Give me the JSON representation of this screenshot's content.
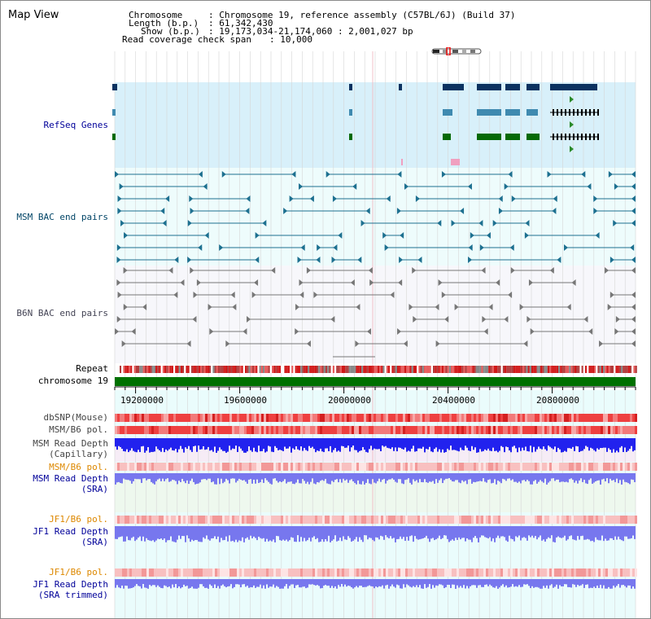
{
  "view_title": "Map View",
  "info": {
    "chromosome_label": "Chromosome",
    "chromosome_value": ": Chromosome 19, reference assembly (C57BL/6J) (Build 37)",
    "length_label": "Length (b.p.)",
    "length_value": ": 61,342,430",
    "show_label": "Show (b.p.)",
    "show_value": ": 19,173,034-21,174,060 : 2,001,027 bp",
    "coverage_label": "Read coverage check span",
    "coverage_value": ": 10,000"
  },
  "tracks": {
    "refseq": "RefSeq Genes",
    "msm_bac": "MSM BAC end pairs",
    "b6n_bac": "B6N BAC end pairs",
    "repeat": "Repeat",
    "chromosome": "chromosome 19",
    "dbsnp": "dbSNP(Mouse)",
    "msm_b6_pol": "MSM/B6 pol.",
    "msm_depth_cap_1": "MSM Read Depth",
    "msm_depth_cap_2": "(Capillary)",
    "msm_b6_pol_sra": "MSM/B6 pol.",
    "msm_depth_sra_1": "MSM Read Depth",
    "msm_depth_sra_2": "(SRA)",
    "jf1_b6_pol": "JF1/B6 pol.",
    "jf1_depth_sra_1": "JF1 Read Depth",
    "jf1_depth_sra_2": "(SRA)",
    "jf1_b6_pol_trim": "JF1/B6 pol.",
    "jf1_depth_trim_1": "JF1 Read Depth",
    "jf1_depth_trim_2": "(SRA trimmed)"
  },
  "axis_ticks": [
    "19200000",
    "19600000",
    "20000000",
    "20400000",
    "20800000"
  ],
  "colors": {
    "refseq_bg": "#d8f0fa",
    "bac_bg": "#eefcfc",
    "gene_navy": "#0b3260",
    "gene_steel": "#3f8ab0",
    "gene_green": "#066a06",
    "chromosome_green": "#007000",
    "msm_label": "#004466",
    "b6n_label": "#444455",
    "navy_label": "#000099",
    "orange_label": "#dd8800",
    "depth_blue": "#2222ee",
    "depth_lightblue": "#7777ee"
  }
}
